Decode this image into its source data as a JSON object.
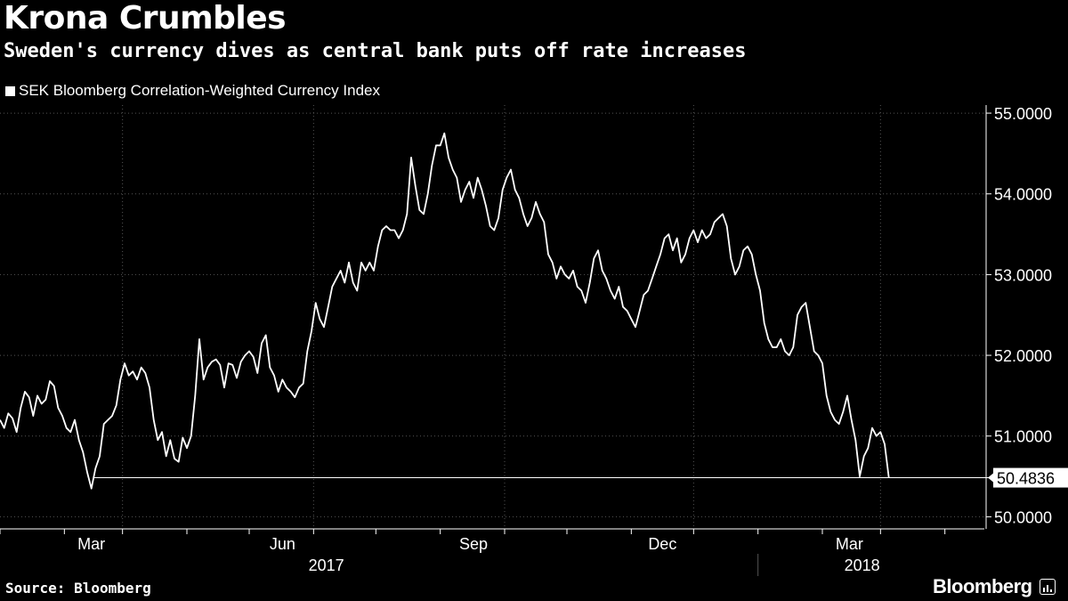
{
  "title": "Krona Crumbles",
  "subtitle": "Sweden's currency dives as central bank puts off rate increases",
  "legend": {
    "label": "SEK Bloomberg Correlation-Weighted Currency Index",
    "color": "#ffffff"
  },
  "source": "Source: Bloomberg",
  "brand": {
    "name": "Bloomberg",
    "icon": "bloomberg-terminal-icon"
  },
  "colors": {
    "background": "#000000",
    "line": "#ffffff",
    "grid": "#555555"
  },
  "chart_data": {
    "type": "line",
    "title": "Krona Crumbles",
    "subtitle": "Sweden's currency dives as central bank puts off rate increases",
    "series_name": "SEK Bloomberg Correlation-Weighted Currency Index",
    "xlabel": "",
    "ylabel": "",
    "x_range": [
      "2017-01-01",
      "2018-04-20"
    ],
    "ylim": [
      49.85,
      55.1
    ],
    "yticks": [
      {
        "value": 55.0,
        "label": "55.0000"
      },
      {
        "value": 54.0,
        "label": "54.0000"
      },
      {
        "value": 53.0,
        "label": "53.0000"
      },
      {
        "value": 52.0,
        "label": "52.0000"
      },
      {
        "value": 51.0,
        "label": "51.0000"
      },
      {
        "value": 50.0,
        "label": "50.0000"
      }
    ],
    "xticks": [
      {
        "value": "2017-03-01",
        "label": "Mar"
      },
      {
        "value": "2017-06-01",
        "label": "Jun"
      },
      {
        "value": "2017-09-01",
        "label": "Sep"
      },
      {
        "value": "2017-12-01",
        "label": "Dec"
      },
      {
        "value": "2018-03-01",
        "label": "Mar"
      }
    ],
    "year_labels": [
      {
        "value": "2017-06-20",
        "label": "2017"
      },
      {
        "value": "2018-03-05",
        "label": "2018"
      }
    ],
    "year_divider": "2018-01-01",
    "reference_line": {
      "value": 50.4836,
      "label": "50.4836",
      "start": "2017-02-15"
    },
    "grid": true,
    "points": [
      [
        "2017-01-01",
        51.2
      ],
      [
        "2017-01-03",
        51.1
      ],
      [
        "2017-01-05",
        51.28
      ],
      [
        "2017-01-07",
        51.22
      ],
      [
        "2017-01-09",
        51.05
      ],
      [
        "2017-01-11",
        51.35
      ],
      [
        "2017-01-13",
        51.55
      ],
      [
        "2017-01-15",
        51.48
      ],
      [
        "2017-01-17",
        51.25
      ],
      [
        "2017-01-19",
        51.5
      ],
      [
        "2017-01-21",
        51.4
      ],
      [
        "2017-01-23",
        51.45
      ],
      [
        "2017-01-25",
        51.68
      ],
      [
        "2017-01-27",
        51.62
      ],
      [
        "2017-01-29",
        51.35
      ],
      [
        "2017-01-31",
        51.25
      ],
      [
        "2017-02-02",
        51.1
      ],
      [
        "2017-02-04",
        51.05
      ],
      [
        "2017-02-06",
        51.2
      ],
      [
        "2017-02-08",
        50.95
      ],
      [
        "2017-02-10",
        50.8
      ],
      [
        "2017-02-12",
        50.55
      ],
      [
        "2017-02-14",
        50.35
      ],
      [
        "2017-02-16",
        50.6
      ],
      [
        "2017-02-18",
        50.75
      ],
      [
        "2017-02-20",
        51.15
      ],
      [
        "2017-02-22",
        51.2
      ],
      [
        "2017-02-24",
        51.25
      ],
      [
        "2017-02-26",
        51.38
      ],
      [
        "2017-02-28",
        51.7
      ],
      [
        "2017-03-02",
        51.9
      ],
      [
        "2017-03-04",
        51.75
      ],
      [
        "2017-03-06",
        51.8
      ],
      [
        "2017-03-08",
        51.7
      ],
      [
        "2017-03-10",
        51.85
      ],
      [
        "2017-03-12",
        51.78
      ],
      [
        "2017-03-14",
        51.6
      ],
      [
        "2017-03-16",
        51.2
      ],
      [
        "2017-03-18",
        50.95
      ],
      [
        "2017-03-20",
        51.05
      ],
      [
        "2017-03-22",
        50.75
      ],
      [
        "2017-03-24",
        50.95
      ],
      [
        "2017-03-26",
        50.72
      ],
      [
        "2017-03-28",
        50.68
      ],
      [
        "2017-03-30",
        50.98
      ],
      [
        "2017-04-01",
        50.85
      ],
      [
        "2017-04-03",
        51.0
      ],
      [
        "2017-04-05",
        51.5
      ],
      [
        "2017-04-07",
        52.2
      ],
      [
        "2017-04-09",
        51.7
      ],
      [
        "2017-04-11",
        51.85
      ],
      [
        "2017-04-13",
        51.92
      ],
      [
        "2017-04-15",
        51.95
      ],
      [
        "2017-04-17",
        51.88
      ],
      [
        "2017-04-19",
        51.6
      ],
      [
        "2017-04-21",
        51.9
      ],
      [
        "2017-04-23",
        51.88
      ],
      [
        "2017-04-25",
        51.72
      ],
      [
        "2017-04-27",
        51.92
      ],
      [
        "2017-04-29",
        52.0
      ],
      [
        "2017-05-01",
        52.05
      ],
      [
        "2017-05-03",
        51.98
      ],
      [
        "2017-05-05",
        51.78
      ],
      [
        "2017-05-07",
        52.15
      ],
      [
        "2017-05-09",
        52.25
      ],
      [
        "2017-05-11",
        51.85
      ],
      [
        "2017-05-13",
        51.75
      ],
      [
        "2017-05-15",
        51.55
      ],
      [
        "2017-05-17",
        51.7
      ],
      [
        "2017-05-19",
        51.6
      ],
      [
        "2017-05-21",
        51.55
      ],
      [
        "2017-05-23",
        51.48
      ],
      [
        "2017-05-25",
        51.6
      ],
      [
        "2017-05-27",
        51.65
      ],
      [
        "2017-05-29",
        52.05
      ],
      [
        "2017-05-31",
        52.3
      ],
      [
        "2017-06-02",
        52.65
      ],
      [
        "2017-06-04",
        52.45
      ],
      [
        "2017-06-06",
        52.35
      ],
      [
        "2017-06-08",
        52.6
      ],
      [
        "2017-06-10",
        52.85
      ],
      [
        "2017-06-12",
        52.95
      ],
      [
        "2017-06-14",
        53.05
      ],
      [
        "2017-06-16",
        52.9
      ],
      [
        "2017-06-18",
        53.15
      ],
      [
        "2017-06-20",
        52.9
      ],
      [
        "2017-06-22",
        52.8
      ],
      [
        "2017-06-24",
        53.15
      ],
      [
        "2017-06-26",
        53.05
      ],
      [
        "2017-06-28",
        53.15
      ],
      [
        "2017-06-30",
        53.05
      ],
      [
        "2017-07-02",
        53.35
      ],
      [
        "2017-07-04",
        53.55
      ],
      [
        "2017-07-06",
        53.6
      ],
      [
        "2017-07-08",
        53.55
      ],
      [
        "2017-07-10",
        53.55
      ],
      [
        "2017-07-12",
        53.45
      ],
      [
        "2017-07-14",
        53.55
      ],
      [
        "2017-07-16",
        53.75
      ],
      [
        "2017-07-18",
        54.45
      ],
      [
        "2017-07-20",
        54.1
      ],
      [
        "2017-07-22",
        53.8
      ],
      [
        "2017-07-24",
        53.75
      ],
      [
        "2017-07-26",
        54.0
      ],
      [
        "2017-07-28",
        54.35
      ],
      [
        "2017-07-30",
        54.6
      ],
      [
        "2017-08-01",
        54.6
      ],
      [
        "2017-08-03",
        54.75
      ],
      [
        "2017-08-05",
        54.45
      ],
      [
        "2017-08-07",
        54.3
      ],
      [
        "2017-08-09",
        54.2
      ],
      [
        "2017-08-11",
        53.9
      ],
      [
        "2017-08-13",
        54.05
      ],
      [
        "2017-08-15",
        54.15
      ],
      [
        "2017-08-17",
        53.95
      ],
      [
        "2017-08-19",
        54.2
      ],
      [
        "2017-08-21",
        54.05
      ],
      [
        "2017-08-23",
        53.85
      ],
      [
        "2017-08-25",
        53.6
      ],
      [
        "2017-08-27",
        53.55
      ],
      [
        "2017-08-29",
        53.7
      ],
      [
        "2017-08-31",
        54.05
      ],
      [
        "2017-09-02",
        54.2
      ],
      [
        "2017-09-04",
        54.3
      ],
      [
        "2017-09-06",
        54.05
      ],
      [
        "2017-09-08",
        53.95
      ],
      [
        "2017-09-10",
        53.75
      ],
      [
        "2017-09-12",
        53.6
      ],
      [
        "2017-09-14",
        53.7
      ],
      [
        "2017-09-16",
        53.9
      ],
      [
        "2017-09-18",
        53.75
      ],
      [
        "2017-09-20",
        53.65
      ],
      [
        "2017-09-22",
        53.25
      ],
      [
        "2017-09-24",
        53.15
      ],
      [
        "2017-09-26",
        52.95
      ],
      [
        "2017-09-28",
        53.1
      ],
      [
        "2017-09-30",
        53.0
      ],
      [
        "2017-10-02",
        52.95
      ],
      [
        "2017-10-04",
        53.05
      ],
      [
        "2017-10-06",
        52.85
      ],
      [
        "2017-10-08",
        52.8
      ],
      [
        "2017-10-10",
        52.65
      ],
      [
        "2017-10-12",
        52.9
      ],
      [
        "2017-10-14",
        53.2
      ],
      [
        "2017-10-16",
        53.3
      ],
      [
        "2017-10-18",
        53.05
      ],
      [
        "2017-10-20",
        52.95
      ],
      [
        "2017-10-22",
        52.8
      ],
      [
        "2017-10-24",
        52.7
      ],
      [
        "2017-10-26",
        52.85
      ],
      [
        "2017-10-28",
        52.6
      ],
      [
        "2017-10-30",
        52.55
      ],
      [
        "2017-11-01",
        52.45
      ],
      [
        "2017-11-03",
        52.35
      ],
      [
        "2017-11-05",
        52.55
      ],
      [
        "2017-11-07",
        52.75
      ],
      [
        "2017-11-09",
        52.8
      ],
      [
        "2017-11-11",
        52.95
      ],
      [
        "2017-11-13",
        53.1
      ],
      [
        "2017-11-15",
        53.25
      ],
      [
        "2017-11-17",
        53.45
      ],
      [
        "2017-11-19",
        53.5
      ],
      [
        "2017-11-21",
        53.3
      ],
      [
        "2017-11-23",
        53.45
      ],
      [
        "2017-11-25",
        53.15
      ],
      [
        "2017-11-27",
        53.25
      ],
      [
        "2017-11-29",
        53.45
      ],
      [
        "2017-12-01",
        53.55
      ],
      [
        "2017-12-03",
        53.4
      ],
      [
        "2017-12-05",
        53.55
      ],
      [
        "2017-12-07",
        53.45
      ],
      [
        "2017-12-09",
        53.5
      ],
      [
        "2017-12-11",
        53.65
      ],
      [
        "2017-12-13",
        53.7
      ],
      [
        "2017-12-15",
        53.75
      ],
      [
        "2017-12-17",
        53.6
      ],
      [
        "2017-12-19",
        53.2
      ],
      [
        "2017-12-21",
        53.0
      ],
      [
        "2017-12-23",
        53.1
      ],
      [
        "2017-12-25",
        53.3
      ],
      [
        "2017-12-27",
        53.35
      ],
      [
        "2017-12-29",
        53.25
      ],
      [
        "2017-12-31",
        53.0
      ],
      [
        "2018-01-02",
        52.8
      ],
      [
        "2018-01-04",
        52.4
      ],
      [
        "2018-01-06",
        52.2
      ],
      [
        "2018-01-08",
        52.1
      ],
      [
        "2018-01-10",
        52.1
      ],
      [
        "2018-01-12",
        52.2
      ],
      [
        "2018-01-14",
        52.05
      ],
      [
        "2018-01-16",
        52.0
      ],
      [
        "2018-01-18",
        52.1
      ],
      [
        "2018-01-20",
        52.5
      ],
      [
        "2018-01-22",
        52.6
      ],
      [
        "2018-01-24",
        52.65
      ],
      [
        "2018-01-26",
        52.35
      ],
      [
        "2018-01-28",
        52.05
      ],
      [
        "2018-01-30",
        52.0
      ],
      [
        "2018-02-01",
        51.9
      ],
      [
        "2018-02-03",
        51.5
      ],
      [
        "2018-02-05",
        51.3
      ],
      [
        "2018-02-07",
        51.2
      ],
      [
        "2018-02-09",
        51.15
      ],
      [
        "2018-02-11",
        51.3
      ],
      [
        "2018-02-13",
        51.5
      ],
      [
        "2018-02-15",
        51.2
      ],
      [
        "2018-02-17",
        50.95
      ],
      [
        "2018-02-19",
        50.5
      ],
      [
        "2018-02-21",
        50.75
      ],
      [
        "2018-02-23",
        50.85
      ],
      [
        "2018-02-25",
        51.1
      ],
      [
        "2018-02-27",
        51.0
      ],
      [
        "2018-03-01",
        51.05
      ],
      [
        "2018-03-03",
        50.9
      ],
      [
        "2018-03-05",
        50.4836
      ]
    ]
  }
}
